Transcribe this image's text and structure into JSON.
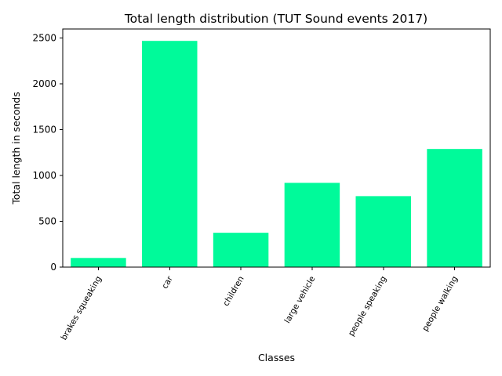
{
  "chart_data": {
    "type": "bar",
    "title": "Total length distribution (TUT Sound events 2017)",
    "xlabel": "Classes",
    "ylabel": "Total length in seconds",
    "categories": [
      "brakes squeaking",
      "car",
      "children",
      "large vehicle",
      "people speaking",
      "people walking"
    ],
    "values": [
      100,
      2470,
      375,
      920,
      775,
      1290
    ],
    "ylim": [
      0,
      2600
    ],
    "yticks": [
      0,
      500,
      1000,
      1500,
      2000,
      2500
    ],
    "bar_color": "#00fa9a",
    "grid": false,
    "xtick_rotation": 60
  }
}
